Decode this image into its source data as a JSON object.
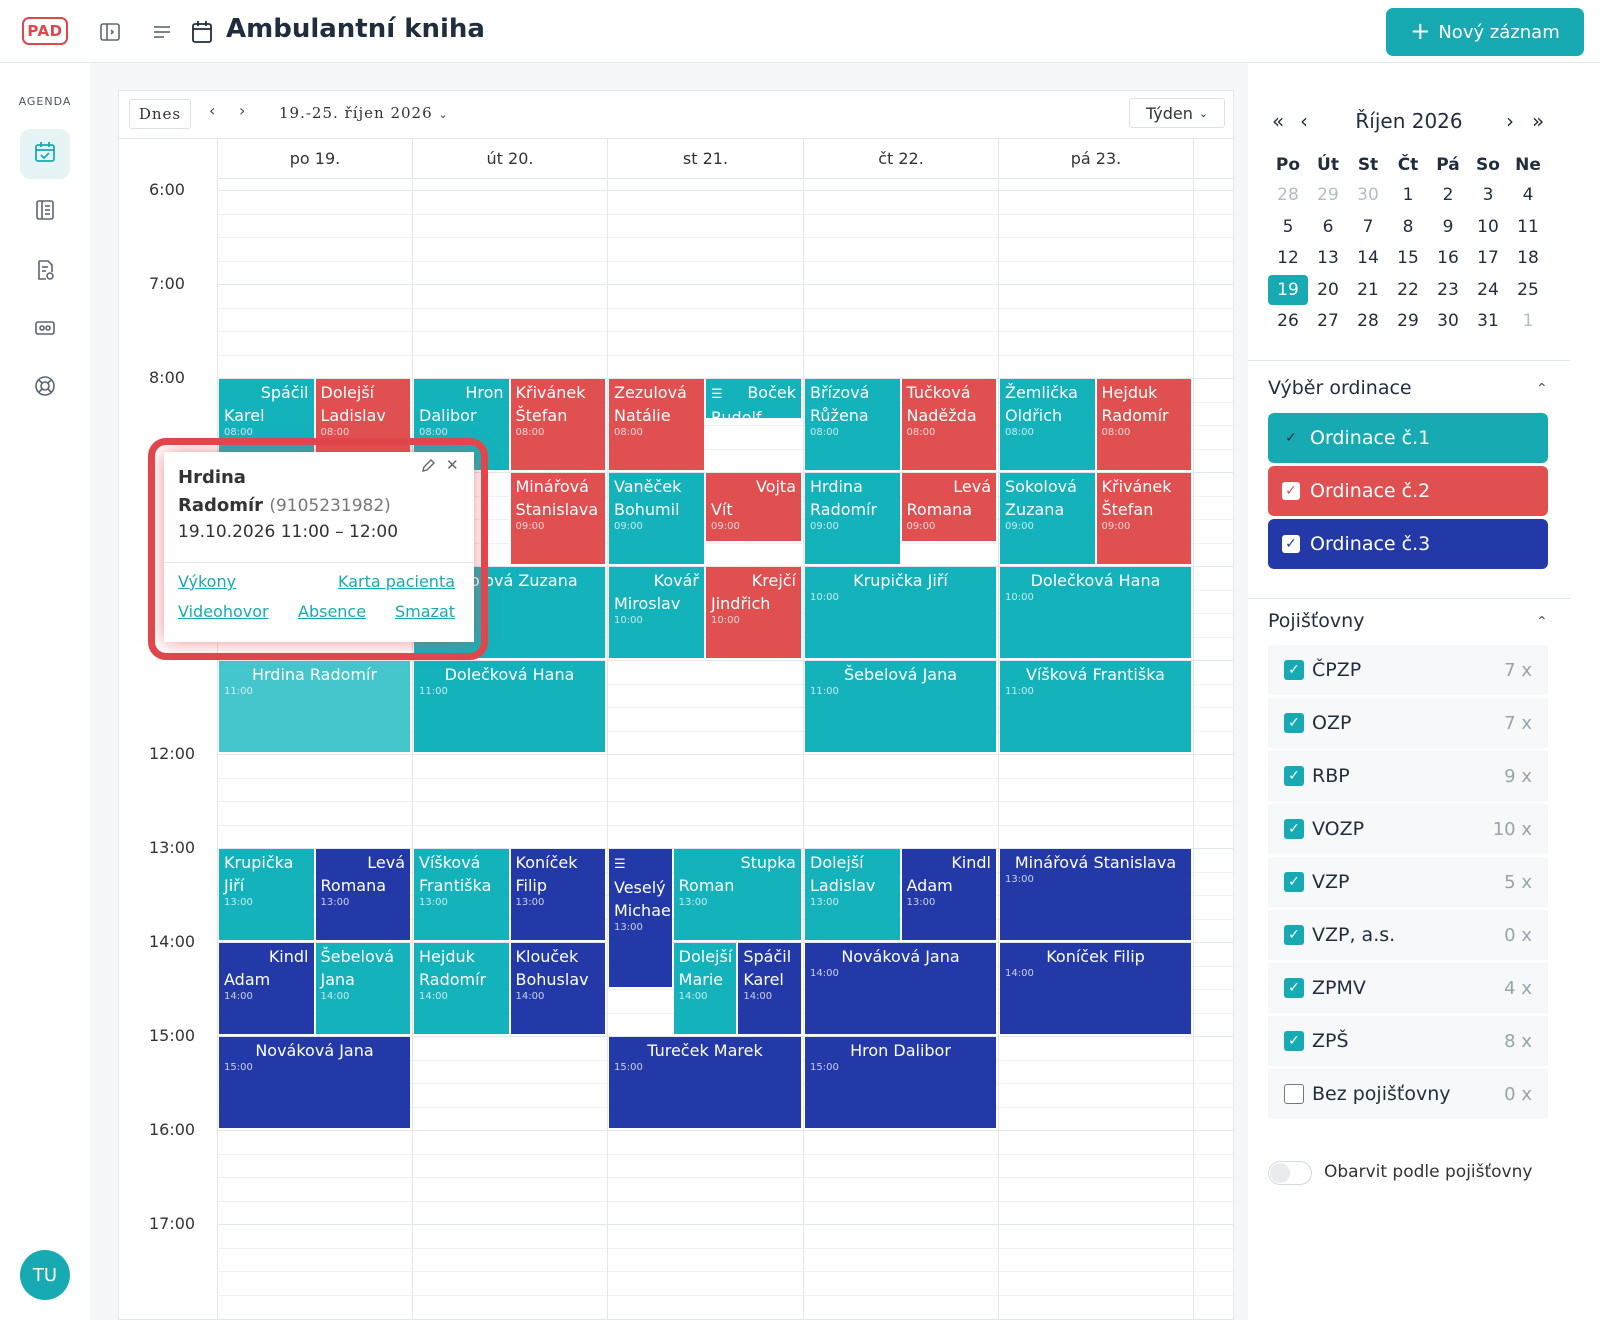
{
  "app": {
    "logo_text": "PAD",
    "title": "Ambulantní kniha",
    "new_button": "Nový záznam"
  },
  "sidebar": {
    "section_label": "AGENDA",
    "avatar_initials": "TU",
    "items": [
      {
        "icon": "calendar-check-icon",
        "active": true
      },
      {
        "icon": "book-icon",
        "active": false
      },
      {
        "icon": "document-check-icon",
        "active": false
      },
      {
        "icon": "id-card-icon",
        "active": false
      },
      {
        "icon": "lifebuoy-icon",
        "active": false
      }
    ]
  },
  "toolbar": {
    "today": "Dnes",
    "prev": "‹",
    "next": "›",
    "range": "19.-25. říjen 2026",
    "view": "Týden"
  },
  "days": [
    "po 19.",
    "út 20.",
    "st 21.",
    "čt 22.",
    "pá 23."
  ],
  "hours": [
    "6:00",
    "7:00",
    "8:00",
    "",
    "",
    "",
    "12:00",
    "13:00",
    "14:00",
    "15:00",
    "16:00",
    "17:00"
  ],
  "events": [
    {
      "day": 0,
      "lane": 0,
      "lanes": 2,
      "start": 8,
      "dur": 1,
      "color": "t",
      "first": "Spáčil",
      "last": "Karel",
      "time": "08:00"
    },
    {
      "day": 0,
      "lane": 1,
      "lanes": 2,
      "start": 8,
      "dur": 1,
      "color": "r",
      "first": "",
      "last": "Dolejší Ladislav",
      "time": "08:00"
    },
    {
      "day": 1,
      "lane": 0,
      "lanes": 2,
      "start": 8,
      "dur": 1,
      "color": "t",
      "first": "Hron",
      "last": "Dalibor",
      "time": "08:00"
    },
    {
      "day": 1,
      "lane": 1,
      "lanes": 2,
      "start": 8,
      "dur": 1,
      "color": "r",
      "first": "",
      "last": "Křivánek Štefan",
      "time": "08:00"
    },
    {
      "day": 2,
      "lane": 0,
      "lanes": 2,
      "start": 8,
      "dur": 1,
      "color": "r",
      "first": "",
      "last": "Zezulová Natálie",
      "time": "08:00"
    },
    {
      "day": 2,
      "lane": 1,
      "lanes": 2,
      "start": 8,
      "dur": 0.45,
      "color": "t",
      "first": "Boček",
      "last": "Rudolf",
      "time": "",
      "icon": "≡"
    },
    {
      "day": 3,
      "lane": 0,
      "lanes": 2,
      "start": 8,
      "dur": 1,
      "color": "t",
      "first": "",
      "last": "Břízová Růžena",
      "time": "08:00"
    },
    {
      "day": 3,
      "lane": 1,
      "lanes": 2,
      "start": 8,
      "dur": 1,
      "color": "r",
      "first": "",
      "last": "Tučková Naděžda",
      "time": "08:00"
    },
    {
      "day": 4,
      "lane": 0,
      "lanes": 2,
      "start": 8,
      "dur": 1,
      "color": "t",
      "first": "",
      "last": "Žemlička Oldřich",
      "time": "08:00"
    },
    {
      "day": 4,
      "lane": 1,
      "lanes": 2,
      "start": 8,
      "dur": 1,
      "color": "r",
      "first": "",
      "last": "Hejduk Radomír",
      "time": "08:00"
    },
    {
      "day": 1,
      "lane": 1,
      "lanes": 2,
      "start": 9,
      "dur": 1,
      "color": "r",
      "first": "",
      "last": "Minářová Stanislava",
      "time": "09:00"
    },
    {
      "day": 2,
      "lane": 0,
      "lanes": 2,
      "start": 9,
      "dur": 1,
      "color": "t",
      "first": "",
      "last": "Vaněček Bohumil",
      "time": "09:00"
    },
    {
      "day": 2,
      "lane": 1,
      "lanes": 2,
      "start": 9,
      "dur": 0.75,
      "color": "r",
      "first": "Vojta",
      "last": "Vít",
      "time": "09:00"
    },
    {
      "day": 3,
      "lane": 0,
      "lanes": 2,
      "start": 9,
      "dur": 1,
      "color": "t",
      "first": "",
      "last": "Hrdina Radomír",
      "time": "09:00"
    },
    {
      "day": 3,
      "lane": 1,
      "lanes": 2,
      "start": 9,
      "dur": 0.75,
      "color": "r",
      "first": "Levá",
      "last": "Romana",
      "time": "09:00"
    },
    {
      "day": 4,
      "lane": 0,
      "lanes": 2,
      "start": 9,
      "dur": 1,
      "color": "t",
      "first": "",
      "last": "Sokolová Zuzana",
      "time": "09:00"
    },
    {
      "day": 4,
      "lane": 1,
      "lanes": 2,
      "start": 9,
      "dur": 1,
      "color": "r",
      "first": "",
      "last": "Křivánek Štefan",
      "time": "09:00"
    },
    {
      "day": 1,
      "lane": 0,
      "lanes": 1,
      "start": 10,
      "dur": 1,
      "color": "t",
      "first": "",
      "last": "Sokolová Zuzana",
      "time": "10:00",
      "single": true
    },
    {
      "day": 2,
      "lane": 0,
      "lanes": 2,
      "start": 10,
      "dur": 1,
      "color": "t",
      "first": "Kovář",
      "last": "Miroslav",
      "time": "10:00"
    },
    {
      "day": 2,
      "lane": 1,
      "lanes": 2,
      "start": 10,
      "dur": 1,
      "color": "r",
      "first": "Krejčí",
      "last": "Jindřich",
      "time": "10:00"
    },
    {
      "day": 3,
      "lane": 0,
      "lanes": 1,
      "start": 10,
      "dur": 1,
      "color": "t",
      "first": "",
      "last": "Krupička Jiří",
      "time": "10:00",
      "single": true
    },
    {
      "day": 4,
      "lane": 0,
      "lanes": 1,
      "start": 10,
      "dur": 1,
      "color": "t",
      "first": "",
      "last": "Dolečková Hana",
      "time": "10:00",
      "single": true
    },
    {
      "day": 0,
      "lane": 0,
      "lanes": 1,
      "start": 11,
      "dur": 1,
      "color": "hl",
      "first": "",
      "last": "Hrdina Radomír",
      "time": "11:00",
      "single": true
    },
    {
      "day": 1,
      "lane": 0,
      "lanes": 1,
      "start": 11,
      "dur": 1,
      "color": "t",
      "first": "",
      "last": "Dolečková Hana",
      "time": "11:00",
      "single": true
    },
    {
      "day": 3,
      "lane": 0,
      "lanes": 1,
      "start": 11,
      "dur": 1,
      "color": "t",
      "first": "",
      "last": "Šebelová Jana",
      "time": "11:00",
      "single": true
    },
    {
      "day": 4,
      "lane": 0,
      "lanes": 1,
      "start": 11,
      "dur": 1,
      "color": "t",
      "first": "",
      "last": "Víšková Františka",
      "time": "11:00",
      "single": true
    },
    {
      "day": 0,
      "lane": 0,
      "lanes": 2,
      "start": 13,
      "dur": 1,
      "color": "t",
      "first": "",
      "last": "Krupička Jiří",
      "time": "13:00"
    },
    {
      "day": 0,
      "lane": 1,
      "lanes": 2,
      "start": 13,
      "dur": 1,
      "color": "b",
      "first": "Levá",
      "last": "Romana",
      "time": "13:00"
    },
    {
      "day": 1,
      "lane": 0,
      "lanes": 2,
      "start": 13,
      "dur": 1,
      "color": "t",
      "first": "",
      "last": "Víšková Františka",
      "time": "13:00"
    },
    {
      "day": 1,
      "lane": 1,
      "lanes": 2,
      "start": 13,
      "dur": 1,
      "color": "b",
      "first": "",
      "last": "Koníček Filip",
      "time": "13:00"
    },
    {
      "day": 2,
      "lane": 0,
      "lanes": 3,
      "start": 13,
      "dur": 1.5,
      "color": "b",
      "first": "",
      "last": "Veselý Michael",
      "time": "13:00",
      "icon": "≡"
    },
    {
      "day": 2,
      "lane": 1,
      "lanes": 3,
      "start": 13,
      "dur": 1,
      "color": "t",
      "first": "Stupka",
      "last": "Roman",
      "time": "13:00",
      "wide": 2
    },
    {
      "day": 3,
      "lane": 0,
      "lanes": 2,
      "start": 13,
      "dur": 1,
      "color": "t",
      "first": "",
      "last": "Dolejší Ladislav",
      "time": "13:00"
    },
    {
      "day": 3,
      "lane": 1,
      "lanes": 2,
      "start": 13,
      "dur": 1,
      "color": "b",
      "first": "Kindl",
      "last": "Adam",
      "time": "13:00"
    },
    {
      "day": 4,
      "lane": 0,
      "lanes": 1,
      "start": 13,
      "dur": 1,
      "color": "b",
      "first": "",
      "last": "Minářová Stanislava",
      "time": "13:00",
      "single": true
    },
    {
      "day": 0,
      "lane": 0,
      "lanes": 2,
      "start": 14,
      "dur": 1,
      "color": "b",
      "first": "Kindl",
      "last": "Adam",
      "time": "14:00"
    },
    {
      "day": 0,
      "lane": 1,
      "lanes": 2,
      "start": 14,
      "dur": 1,
      "color": "t",
      "first": "",
      "last": "Šebelová Jana",
      "time": "14:00"
    },
    {
      "day": 1,
      "lane": 0,
      "lanes": 2,
      "start": 14,
      "dur": 1,
      "color": "t",
      "first": "",
      "last": "Hejduk Radomír",
      "time": "14:00"
    },
    {
      "day": 1,
      "lane": 1,
      "lanes": 2,
      "start": 14,
      "dur": 1,
      "color": "b",
      "first": "",
      "last": "Klouček Bohuslav",
      "time": "14:00"
    },
    {
      "day": 2,
      "lane": 1,
      "lanes": 3,
      "start": 14,
      "dur": 1,
      "color": "t",
      "first": "",
      "last": "Dolejší Marie",
      "time": "14:00"
    },
    {
      "day": 2,
      "lane": 2,
      "lanes": 3,
      "start": 14,
      "dur": 1,
      "color": "b",
      "first": "",
      "last": "Spáčil Karel",
      "time": "14:00"
    },
    {
      "day": 3,
      "lane": 0,
      "lanes": 1,
      "start": 14,
      "dur": 1,
      "color": "b",
      "first": "",
      "last": "Nováková Jana",
      "time": "14:00",
      "single": true
    },
    {
      "day": 4,
      "lane": 0,
      "lanes": 1,
      "start": 14,
      "dur": 1,
      "color": "b",
      "first": "",
      "last": "Koníček Filip",
      "time": "14:00",
      "single": true
    },
    {
      "day": 0,
      "lane": 0,
      "lanes": 1,
      "start": 15,
      "dur": 1,
      "color": "b",
      "first": "",
      "last": "Nováková Jana",
      "time": "15:00",
      "single": true
    },
    {
      "day": 2,
      "lane": 0,
      "lanes": 1,
      "start": 15,
      "dur": 1,
      "color": "b",
      "first": "",
      "last": "Tureček Marek",
      "time": "15:00",
      "single": true
    },
    {
      "day": 3,
      "lane": 0,
      "lanes": 1,
      "start": 15,
      "dur": 1,
      "color": "b",
      "first": "",
      "last": "Hron Dalibor",
      "time": "15:00",
      "single": true
    }
  ],
  "popover": {
    "name_line1": "Hrdina",
    "name_line2": "Radomír",
    "patient_id": "(9105231982)",
    "datetime": "19.10.2026 11:00 – 12:00",
    "links": {
      "vykony": "Výkony",
      "karta": "Karta pacienta",
      "video": "Videohovor",
      "absence": "Absence",
      "smazat": "Smazat"
    }
  },
  "mini_calendar": {
    "title": "Říjen 2026",
    "nav": {
      "first": "«",
      "prev": "‹",
      "next": "›",
      "last": "»"
    },
    "weekdays": [
      "Po",
      "Út",
      "St",
      "Čt",
      "Pá",
      "So",
      "Ne"
    ],
    "weeks": [
      [
        {
          "d": "28",
          "m": true
        },
        {
          "d": "29",
          "m": true
        },
        {
          "d": "30",
          "m": true
        },
        {
          "d": "1"
        },
        {
          "d": "2"
        },
        {
          "d": "3"
        },
        {
          "d": "4"
        }
      ],
      [
        {
          "d": "5"
        },
        {
          "d": "6"
        },
        {
          "d": "7"
        },
        {
          "d": "8"
        },
        {
          "d": "9"
        },
        {
          "d": "10"
        },
        {
          "d": "11"
        }
      ],
      [
        {
          "d": "12"
        },
        {
          "d": "13"
        },
        {
          "d": "14"
        },
        {
          "d": "15"
        },
        {
          "d": "16"
        },
        {
          "d": "17"
        },
        {
          "d": "18"
        }
      ],
      [
        {
          "d": "19",
          "s": true
        },
        {
          "d": "20"
        },
        {
          "d": "21"
        },
        {
          "d": "22"
        },
        {
          "d": "23"
        },
        {
          "d": "24"
        },
        {
          "d": "25"
        }
      ],
      [
        {
          "d": "26"
        },
        {
          "d": "27"
        },
        {
          "d": "28"
        },
        {
          "d": "29"
        },
        {
          "d": "30"
        },
        {
          "d": "31"
        },
        {
          "d": "1",
          "m": true
        }
      ]
    ]
  },
  "ordinace": {
    "title": "Výběr ordinace",
    "items": [
      {
        "label": "Ordinace č.1",
        "color": "t",
        "check": "plain"
      },
      {
        "label": "Ordinace č.2",
        "color": "r",
        "check": "box"
      },
      {
        "label": "Ordinace č.3",
        "color": "b",
        "check": "box"
      }
    ]
  },
  "pojistovny": {
    "title": "Pojišťovny",
    "items": [
      {
        "label": "ČPZP",
        "count": "7 x",
        "checked": true
      },
      {
        "label": "OZP",
        "count": "7 x",
        "checked": true
      },
      {
        "label": "RBP",
        "count": "9 x",
        "checked": true
      },
      {
        "label": "VOZP",
        "count": "10 x",
        "checked": true
      },
      {
        "label": "VZP",
        "count": "5 x",
        "checked": true
      },
      {
        "label": "VZP, a.s.",
        "count": "0 x",
        "checked": true
      },
      {
        "label": "ZPMV",
        "count": "4 x",
        "checked": true
      },
      {
        "label": "ZPŠ",
        "count": "8 x",
        "checked": true
      },
      {
        "label": "Bez pojišťovny",
        "count": "0 x",
        "checked": false
      }
    ],
    "toggle_label": "Obarvit podle pojišťovny",
    "toggle_on": false
  },
  "colors": {
    "teal": "#14b2bb",
    "red": "#e05050",
    "navy": "#2339a8",
    "accent": "#17aab2"
  }
}
